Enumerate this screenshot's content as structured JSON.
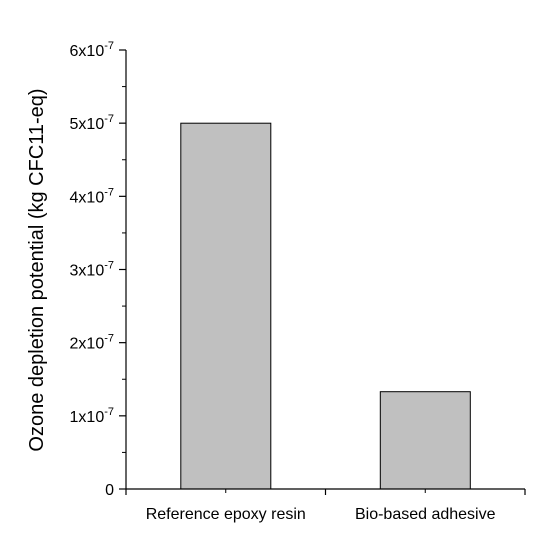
{
  "chart_data": {
    "type": "bar",
    "title": "",
    "xlabel": "",
    "ylabel": "Ozone depletion potential (kg CFC11-eq)",
    "categories": [
      "Reference epoxy resin",
      "Bio-based adhesive"
    ],
    "values": [
      5e-07,
      1.33e-07
    ],
    "ylim": [
      0,
      6e-07
    ],
    "yticks": [
      {
        "value": 0,
        "mantissa": "0",
        "exp": ""
      },
      {
        "value": 1e-07,
        "mantissa": "1x10",
        "exp": "-7"
      },
      {
        "value": 2e-07,
        "mantissa": "2x10",
        "exp": "-7"
      },
      {
        "value": 3e-07,
        "mantissa": "3x10",
        "exp": "-7"
      },
      {
        "value": 4e-07,
        "mantissa": "4x10",
        "exp": "-7"
      },
      {
        "value": 5e-07,
        "mantissa": "5x10",
        "exp": "-7"
      },
      {
        "value": 6e-07,
        "mantissa": "6x10",
        "exp": "-7"
      }
    ],
    "bar_color": "#c0c0c0",
    "bar_edge_color": "#000000",
    "grid": false,
    "legend": "none"
  }
}
